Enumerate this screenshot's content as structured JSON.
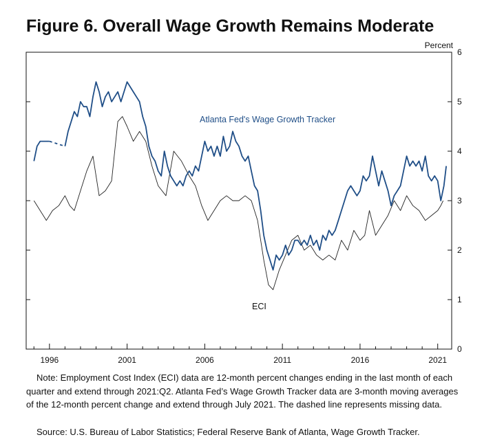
{
  "chart_data": {
    "type": "line",
    "title": "Figure 6. Overall Wage Growth Remains Moderate",
    "ylabel": "Percent",
    "ylim": [
      0,
      6
    ],
    "y_ticks": [
      "0",
      "1",
      "2",
      "3",
      "4",
      "5",
      "6"
    ],
    "xlim": [
      1994.5,
      2021.9
    ],
    "x_ticks": [
      "1996",
      "2001",
      "2006",
      "2011",
      "2016",
      "2021"
    ],
    "colors": {
      "atlanta": "#1f4e87",
      "eci": "#222222"
    },
    "series": [
      {
        "name": "Atlanta Fed's Wage Growth Tracker",
        "label": "Atlanta Fed's Wage Growth Tracker",
        "missing": {
          "from": 1996.0,
          "to": 1997.0,
          "style": "dashed"
        },
        "points": [
          [
            1995.0,
            3.8
          ],
          [
            1995.2,
            4.1
          ],
          [
            1995.4,
            4.2
          ],
          [
            1995.6,
            4.2
          ],
          [
            1995.9,
            4.2
          ],
          [
            1996.0,
            4.2
          ],
          [
            1997.0,
            4.1
          ],
          [
            1997.2,
            4.4
          ],
          [
            1997.4,
            4.6
          ],
          [
            1997.6,
            4.8
          ],
          [
            1997.8,
            4.7
          ],
          [
            1998.0,
            5.0
          ],
          [
            1998.2,
            4.9
          ],
          [
            1998.4,
            4.9
          ],
          [
            1998.6,
            4.7
          ],
          [
            1998.8,
            5.1
          ],
          [
            1999.0,
            5.4
          ],
          [
            1999.2,
            5.2
          ],
          [
            1999.4,
            4.9
          ],
          [
            1999.6,
            5.1
          ],
          [
            1999.8,
            5.2
          ],
          [
            2000.0,
            5.0
          ],
          [
            2000.2,
            5.1
          ],
          [
            2000.4,
            5.2
          ],
          [
            2000.6,
            5.0
          ],
          [
            2000.8,
            5.2
          ],
          [
            2001.0,
            5.4
          ],
          [
            2001.2,
            5.3
          ],
          [
            2001.4,
            5.2
          ],
          [
            2001.6,
            5.1
          ],
          [
            2001.8,
            5.0
          ],
          [
            2002.0,
            4.7
          ],
          [
            2002.2,
            4.5
          ],
          [
            2002.4,
            4.1
          ],
          [
            2002.6,
            3.9
          ],
          [
            2002.8,
            3.8
          ],
          [
            2003.0,
            3.6
          ],
          [
            2003.2,
            3.5
          ],
          [
            2003.4,
            4.0
          ],
          [
            2003.6,
            3.7
          ],
          [
            2003.8,
            3.5
          ],
          [
            2004.0,
            3.4
          ],
          [
            2004.2,
            3.3
          ],
          [
            2004.4,
            3.4
          ],
          [
            2004.6,
            3.3
          ],
          [
            2004.8,
            3.5
          ],
          [
            2005.0,
            3.6
          ],
          [
            2005.2,
            3.5
          ],
          [
            2005.4,
            3.7
          ],
          [
            2005.6,
            3.6
          ],
          [
            2005.8,
            3.9
          ],
          [
            2006.0,
            4.2
          ],
          [
            2006.2,
            4.0
          ],
          [
            2006.4,
            4.1
          ],
          [
            2006.6,
            3.9
          ],
          [
            2006.8,
            4.1
          ],
          [
            2007.0,
            3.9
          ],
          [
            2007.2,
            4.3
          ],
          [
            2007.4,
            4.0
          ],
          [
            2007.6,
            4.1
          ],
          [
            2007.8,
            4.4
          ],
          [
            2008.0,
            4.2
          ],
          [
            2008.2,
            4.1
          ],
          [
            2008.4,
            3.9
          ],
          [
            2008.6,
            3.8
          ],
          [
            2008.8,
            3.9
          ],
          [
            2009.0,
            3.6
          ],
          [
            2009.2,
            3.3
          ],
          [
            2009.4,
            3.2
          ],
          [
            2009.6,
            2.8
          ],
          [
            2009.8,
            2.3
          ],
          [
            2010.0,
            2.0
          ],
          [
            2010.2,
            1.8
          ],
          [
            2010.4,
            1.6
          ],
          [
            2010.6,
            1.9
          ],
          [
            2010.8,
            1.8
          ],
          [
            2011.0,
            1.9
          ],
          [
            2011.2,
            2.1
          ],
          [
            2011.4,
            1.9
          ],
          [
            2011.6,
            2.0
          ],
          [
            2011.8,
            2.2
          ],
          [
            2012.0,
            2.2
          ],
          [
            2012.2,
            2.1
          ],
          [
            2012.4,
            2.2
          ],
          [
            2012.6,
            2.1
          ],
          [
            2012.8,
            2.3
          ],
          [
            2013.0,
            2.1
          ],
          [
            2013.2,
            2.2
          ],
          [
            2013.4,
            2.0
          ],
          [
            2013.6,
            2.3
          ],
          [
            2013.8,
            2.2
          ],
          [
            2014.0,
            2.4
          ],
          [
            2014.2,
            2.3
          ],
          [
            2014.4,
            2.4
          ],
          [
            2014.6,
            2.6
          ],
          [
            2014.8,
            2.8
          ],
          [
            2015.0,
            3.0
          ],
          [
            2015.2,
            3.2
          ],
          [
            2015.4,
            3.3
          ],
          [
            2015.6,
            3.2
          ],
          [
            2015.8,
            3.1
          ],
          [
            2016.0,
            3.2
          ],
          [
            2016.2,
            3.5
          ],
          [
            2016.4,
            3.4
          ],
          [
            2016.6,
            3.5
          ],
          [
            2016.8,
            3.9
          ],
          [
            2017.0,
            3.6
          ],
          [
            2017.2,
            3.3
          ],
          [
            2017.4,
            3.6
          ],
          [
            2017.6,
            3.4
          ],
          [
            2017.8,
            3.2
          ],
          [
            2018.0,
            2.9
          ],
          [
            2018.2,
            3.1
          ],
          [
            2018.4,
            3.2
          ],
          [
            2018.6,
            3.3
          ],
          [
            2018.8,
            3.6
          ],
          [
            2019.0,
            3.9
          ],
          [
            2019.2,
            3.7
          ],
          [
            2019.4,
            3.8
          ],
          [
            2019.6,
            3.7
          ],
          [
            2019.8,
            3.8
          ],
          [
            2020.0,
            3.6
          ],
          [
            2020.2,
            3.9
          ],
          [
            2020.4,
            3.5
          ],
          [
            2020.6,
            3.4
          ],
          [
            2020.8,
            3.5
          ],
          [
            2021.0,
            3.4
          ],
          [
            2021.2,
            3.0
          ],
          [
            2021.4,
            3.3
          ],
          [
            2021.55,
            3.7
          ]
        ]
      },
      {
        "name": "ECI",
        "label": "ECI",
        "points": [
          [
            1995.0,
            3.0
          ],
          [
            1995.4,
            2.8
          ],
          [
            1995.8,
            2.6
          ],
          [
            1996.2,
            2.8
          ],
          [
            1996.6,
            2.9
          ],
          [
            1997.0,
            3.1
          ],
          [
            1997.3,
            2.9
          ],
          [
            1997.6,
            2.8
          ],
          [
            1998.0,
            3.2
          ],
          [
            1998.4,
            3.6
          ],
          [
            1998.8,
            3.9
          ],
          [
            1999.2,
            3.1
          ],
          [
            1999.6,
            3.2
          ],
          [
            2000.0,
            3.4
          ],
          [
            2000.2,
            4.0
          ],
          [
            2000.4,
            4.6
          ],
          [
            2000.7,
            4.7
          ],
          [
            2001.0,
            4.5
          ],
          [
            2001.4,
            4.2
          ],
          [
            2001.8,
            4.4
          ],
          [
            2002.2,
            4.2
          ],
          [
            2002.6,
            3.7
          ],
          [
            2003.0,
            3.3
          ],
          [
            2003.5,
            3.1
          ],
          [
            2004.0,
            4.0
          ],
          [
            2004.5,
            3.8
          ],
          [
            2005.0,
            3.5
          ],
          [
            2005.4,
            3.3
          ],
          [
            2005.8,
            2.9
          ],
          [
            2006.2,
            2.6
          ],
          [
            2006.6,
            2.8
          ],
          [
            2007.0,
            3.0
          ],
          [
            2007.4,
            3.1
          ],
          [
            2007.8,
            3.0
          ],
          [
            2008.2,
            3.0
          ],
          [
            2008.6,
            3.1
          ],
          [
            2009.0,
            3.0
          ],
          [
            2009.4,
            2.6
          ],
          [
            2009.8,
            1.8
          ],
          [
            2010.1,
            1.3
          ],
          [
            2010.4,
            1.2
          ],
          [
            2010.8,
            1.6
          ],
          [
            2011.2,
            1.9
          ],
          [
            2011.6,
            2.2
          ],
          [
            2012.0,
            2.3
          ],
          [
            2012.4,
            2.0
          ],
          [
            2012.8,
            2.1
          ],
          [
            2013.2,
            1.9
          ],
          [
            2013.6,
            1.8
          ],
          [
            2014.0,
            1.9
          ],
          [
            2014.4,
            1.8
          ],
          [
            2014.8,
            2.2
          ],
          [
            2015.2,
            2.0
          ],
          [
            2015.6,
            2.4
          ],
          [
            2016.0,
            2.2
          ],
          [
            2016.3,
            2.3
          ],
          [
            2016.6,
            2.8
          ],
          [
            2017.0,
            2.3
          ],
          [
            2017.4,
            2.5
          ],
          [
            2017.8,
            2.7
          ],
          [
            2018.2,
            3.0
          ],
          [
            2018.6,
            2.8
          ],
          [
            2019.0,
            3.1
          ],
          [
            2019.4,
            2.9
          ],
          [
            2019.8,
            2.8
          ],
          [
            2020.2,
            2.6
          ],
          [
            2020.6,
            2.7
          ],
          [
            2021.0,
            2.8
          ],
          [
            2021.2,
            2.9
          ],
          [
            2021.35,
            3.0
          ]
        ]
      }
    ]
  },
  "notes": {
    "note": "Note:  Employment Cost Index (ECI) data are 12-month percent changes ending in the last month of each quarter and extend through 2021:Q2. Atlanta Fed’s Wage Growth Tracker data are 3-month moving averages of the 12-month percent change and extend through July 2021. The dashed line represents missing data.",
    "source": "Source:  U.S. Bureau of Labor Statistics; Federal Reserve Bank of Atlanta, Wage Growth Tracker."
  }
}
